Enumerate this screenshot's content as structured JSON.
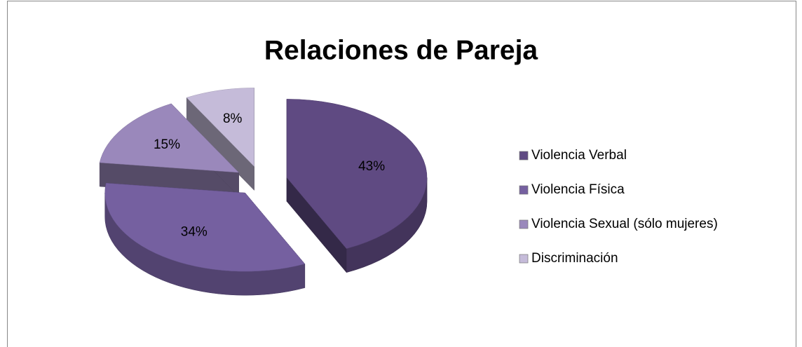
{
  "chart_data": {
    "type": "pie3d",
    "title": "Relaciones de Pareja",
    "categories": [
      "Violencia Verbal",
      "Violencia Física",
      "Violencia Sexual (sólo mujeres)",
      "Discriminación"
    ],
    "values": [
      43,
      34,
      15,
      8
    ],
    "value_labels": [
      "43%",
      "34%",
      "15%",
      "8%"
    ],
    "colors": [
      "#5f4a82",
      "#7560a0",
      "#9a88bb",
      "#c5bbd9"
    ],
    "legend": "right"
  }
}
